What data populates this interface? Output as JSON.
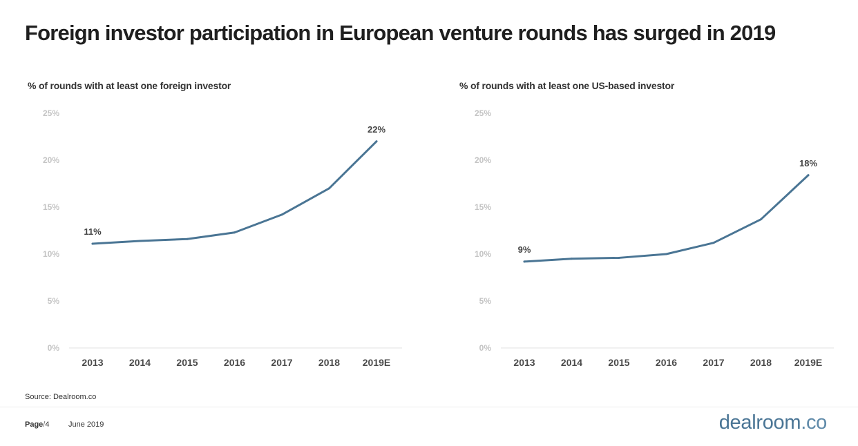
{
  "title": "Foreign investor participation in European venture rounds has surged in 2019",
  "chart_data": [
    {
      "type": "line",
      "title": "% of rounds with at least one foreign investor",
      "xlabel": "",
      "ylabel": "",
      "categories": [
        "2013",
        "2014",
        "2015",
        "2016",
        "2017",
        "2018",
        "2019E"
      ],
      "series": [
        {
          "values": [
            11.1,
            11.4,
            11.6,
            12.3,
            14.2,
            17.0,
            22.0
          ]
        }
      ],
      "data_labels": [
        {
          "index": 0,
          "text": "11%"
        },
        {
          "index": 6,
          "text": "22%"
        }
      ],
      "yticks": [
        "0%",
        "5%",
        "10%",
        "15%",
        "20%",
        "25%"
      ],
      "ylim": [
        0,
        25
      ],
      "grid": false,
      "line_color": "#4a7594"
    },
    {
      "type": "line",
      "title": "% of rounds with at least one US-based investor",
      "xlabel": "",
      "ylabel": "",
      "categories": [
        "2013",
        "2014",
        "2015",
        "2016",
        "2017",
        "2018",
        "2019E"
      ],
      "series": [
        {
          "values": [
            9.2,
            9.5,
            9.6,
            10.0,
            11.2,
            13.7,
            18.4
          ]
        }
      ],
      "data_labels": [
        {
          "index": 0,
          "text": "9%"
        },
        {
          "index": 6,
          "text": "18%"
        }
      ],
      "yticks": [
        "0%",
        "5%",
        "10%",
        "15%",
        "20%",
        "25%"
      ],
      "ylim": [
        0,
        25
      ],
      "grid": false,
      "line_color": "#4a7594"
    }
  ],
  "source": "Source: Dealroom.co",
  "footer": {
    "page_label": "Page",
    "page_sep": "/",
    "page_number": "4",
    "date": "June 2019"
  },
  "brand": {
    "name": "dealroom",
    "tld": ".co"
  }
}
